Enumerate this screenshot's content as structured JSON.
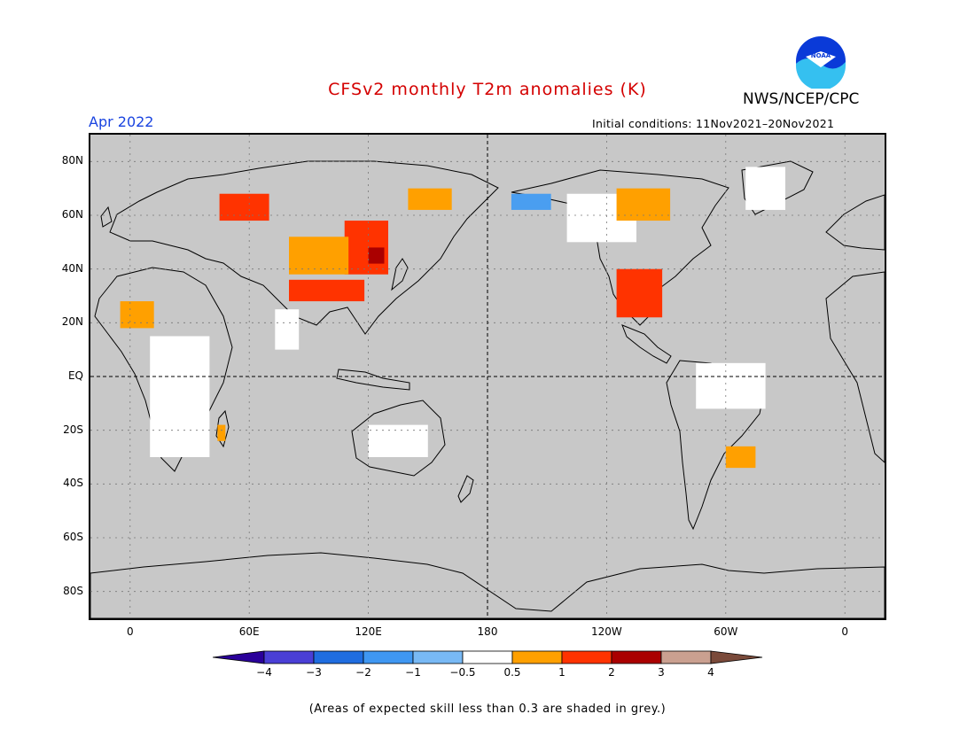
{
  "title": "CFSv2 monthly T2m anomalies (K)",
  "agency": "NWS/NCEP/CPC",
  "logo_text": "NOAA",
  "valid_month": "Apr 2022",
  "initial_conditions": "Initial conditions: 11Nov2021–20Nov2021",
  "map": {
    "projection": "equirectangular",
    "lon_range": [
      -20,
      380
    ],
    "lat_range": [
      -90,
      90
    ],
    "lat_ticks": [
      {
        "lat": 80,
        "label": "80N"
      },
      {
        "lat": 60,
        "label": "60N"
      },
      {
        "lat": 40,
        "label": "40N"
      },
      {
        "lat": 20,
        "label": "20N"
      },
      {
        "lat": 0,
        "label": "EQ"
      },
      {
        "lat": -20,
        "label": "20S"
      },
      {
        "lat": -40,
        "label": "40S"
      },
      {
        "lat": -60,
        "label": "60S"
      },
      {
        "lat": -80,
        "label": "80S"
      }
    ],
    "lon_ticks": [
      {
        "lon": 0,
        "label": "0"
      },
      {
        "lon": 60,
        "label": "60E"
      },
      {
        "lon": 120,
        "label": "120E"
      },
      {
        "lon": 180,
        "label": "180"
      },
      {
        "lon": 240,
        "label": "120W"
      },
      {
        "lon": 300,
        "label": "60W"
      },
      {
        "lon": 360,
        "label": "0"
      }
    ],
    "background_color": "#c8c8c8",
    "anomaly_regions": [
      {
        "name": "scandinavia-russia",
        "lon": [
          45,
          70
        ],
        "lat": [
          58,
          68
        ],
        "color": "#ff3300"
      },
      {
        "name": "central-siberia",
        "lon": [
          140,
          162
        ],
        "lat": [
          62,
          70
        ],
        "color": "#ffa000"
      },
      {
        "name": "mongolia-north-china",
        "lon": [
          108,
          130
        ],
        "lat": [
          38,
          58
        ],
        "color": "#ff3300"
      },
      {
        "name": "mongolia-core",
        "lon": [
          120,
          128
        ],
        "lat": [
          42,
          48
        ],
        "color": "#aa0000"
      },
      {
        "name": "central-asia",
        "lon": [
          80,
          110
        ],
        "lat": [
          38,
          52
        ],
        "color": "#ffa000"
      },
      {
        "name": "tibet",
        "lon": [
          80,
          118
        ],
        "lat": [
          28,
          36
        ],
        "color": "#ff3300"
      },
      {
        "name": "sahara",
        "lon": [
          -5,
          12
        ],
        "lat": [
          18,
          28
        ],
        "color": "#ffa000"
      },
      {
        "name": "canada-hudson",
        "lon": [
          245,
          272
        ],
        "lat": [
          58,
          70
        ],
        "color": "#ffa000"
      },
      {
        "name": "us-southwest",
        "lon": [
          245,
          268
        ],
        "lat": [
          22,
          40
        ],
        "color": "#ff3300"
      },
      {
        "name": "south-america",
        "lon": [
          300,
          315
        ],
        "lat": [
          -34,
          -26
        ],
        "color": "#ffa000"
      },
      {
        "name": "alaska",
        "lon": [
          192,
          212
        ],
        "lat": [
          62,
          68
        ],
        "color": "#4a9ef0"
      },
      {
        "name": "madagascar",
        "lon": [
          44,
          48
        ],
        "lat": [
          -24,
          -18
        ],
        "color": "#ffa000"
      }
    ],
    "skill_regions_white": [
      {
        "name": "africa",
        "lon": [
          10,
          40
        ],
        "lat": [
          -30,
          15
        ]
      },
      {
        "name": "australia",
        "lon": [
          120,
          150
        ],
        "lat": [
          -30,
          -18
        ]
      },
      {
        "name": "amazon",
        "lon": [
          285,
          320
        ],
        "lat": [
          -12,
          5
        ]
      },
      {
        "name": "india",
        "lon": [
          73,
          85
        ],
        "lat": [
          10,
          25
        ]
      },
      {
        "name": "canada",
        "lon": [
          220,
          255
        ],
        "lat": [
          50,
          68
        ]
      },
      {
        "name": "greenland",
        "lon": [
          310,
          330
        ],
        "lat": [
          62,
          78
        ]
      }
    ]
  },
  "colorbar": {
    "colors": [
      "#2a009a",
      "#4a3fd6",
      "#1f6de0",
      "#3f97f2",
      "#78b9f5",
      "#ffffff",
      "#ffa000",
      "#ff3300",
      "#aa0000",
      "#caa090",
      "#7a4a3a"
    ],
    "labels": [
      "−4",
      "−3",
      "−2",
      "−1",
      "−0.5",
      "0.5",
      "1",
      "2",
      "3",
      "4"
    ]
  },
  "note": "(Areas of expected skill less than 0.3 are shaded in grey.)"
}
